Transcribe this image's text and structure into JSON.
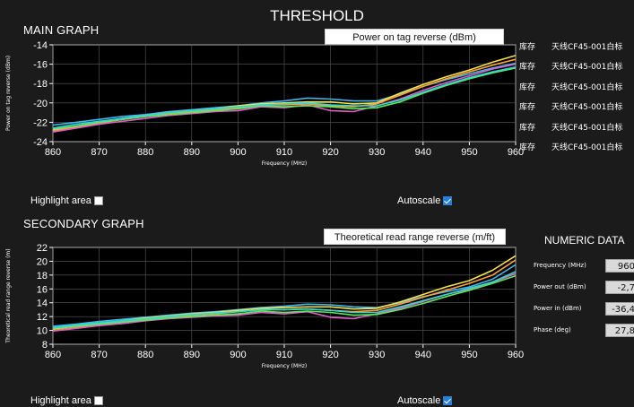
{
  "app": {
    "title": "THRESHOLD"
  },
  "main_graph": {
    "title": "MAIN GRAPH",
    "selector": "Power on tag reverse (dBm)",
    "highlight_label": "Highlight area",
    "highlight_checked": false,
    "autoscale_label": "Autoscale",
    "autoscale_checked": true
  },
  "secondary_graph": {
    "title": "SECONDARY GRAPH",
    "selector": "Theoretical read range reverse (m/ft)",
    "highlight_label": "Highlight area",
    "highlight_checked": false,
    "autoscale_label": "Autoscale",
    "autoscale_checked": true
  },
  "legend": {
    "items": [
      {
        "store": "库存",
        "name": "天线CF45-001白标"
      },
      {
        "store": "库存",
        "name": "天线CF45-001白标"
      },
      {
        "store": "库存",
        "name": "天线CF45-001白标"
      },
      {
        "store": "库存",
        "name": "天线CF45-001白标"
      },
      {
        "store": "库存",
        "name": "天线CF45-001白标"
      },
      {
        "store": "库存",
        "name": "天线CF45-001白标"
      }
    ]
  },
  "numeric": {
    "title": "NUMERIC DATA",
    "rows": [
      {
        "label": "Frequency (MHz)",
        "value": "960"
      },
      {
        "label": "Power out (dBm)",
        "value": "-2,7"
      },
      {
        "label": "Power in (dBm)",
        "value": "-36,4"
      },
      {
        "label": "Phase (deg)",
        "value": "27,8"
      }
    ]
  },
  "colors": {
    "background": "#1b1b1b",
    "series": [
      "#3fb8f0",
      "#f4e34a",
      "#ff9f3a",
      "#e060c8",
      "#5ee85e",
      "#36d6d0"
    ]
  },
  "chart_data": [
    {
      "type": "line",
      "title": "",
      "xlabel": "Frequency (MHz)",
      "ylabel": "Power on tag reverse (dBm)",
      "xlim": [
        860,
        960
      ],
      "ylim": [
        -24,
        -14
      ],
      "x_ticks": [
        860,
        870,
        880,
        890,
        900,
        910,
        920,
        930,
        940,
        950,
        960
      ],
      "y_ticks": [
        -24,
        -22,
        -20,
        -18,
        -16,
        -14
      ],
      "grid": true,
      "x": [
        860,
        865,
        870,
        875,
        880,
        885,
        890,
        895,
        900,
        905,
        910,
        915,
        920,
        925,
        930,
        935,
        940,
        945,
        950,
        955,
        960
      ],
      "series": [
        {
          "values": [
            -22.3,
            -22.0,
            -21.7,
            -21.4,
            -21.2,
            -20.9,
            -20.7,
            -20.5,
            -20.3,
            -20.0,
            -19.8,
            -19.5,
            -19.6,
            -19.8,
            -19.8,
            -19.1,
            -18.3,
            -17.6,
            -17.0,
            -16.4,
            -15.9
          ]
        },
        {
          "values": [
            -22.8,
            -22.4,
            -22.0,
            -21.6,
            -21.3,
            -21.0,
            -20.8,
            -20.6,
            -20.3,
            -20.1,
            -20.0,
            -19.9,
            -19.9,
            -20.1,
            -20.0,
            -19.0,
            -18.1,
            -17.3,
            -16.6,
            -15.8,
            -15.1
          ]
        },
        {
          "values": [
            -22.9,
            -22.5,
            -22.1,
            -21.7,
            -21.4,
            -21.1,
            -20.9,
            -20.7,
            -20.5,
            -20.2,
            -20.2,
            -20.1,
            -20.3,
            -20.4,
            -20.1,
            -19.2,
            -18.3,
            -17.5,
            -16.8,
            -16.1,
            -15.5
          ]
        },
        {
          "values": [
            -23.0,
            -22.6,
            -22.2,
            -21.9,
            -21.6,
            -21.3,
            -21.1,
            -20.9,
            -20.8,
            -20.4,
            -20.5,
            -20.2,
            -20.8,
            -20.9,
            -20.3,
            -19.6,
            -18.7,
            -17.9,
            -17.2,
            -16.5,
            -16.0
          ]
        },
        {
          "values": [
            -22.7,
            -22.4,
            -22.0,
            -21.7,
            -21.4,
            -21.2,
            -21.0,
            -20.8,
            -20.6,
            -20.3,
            -20.4,
            -20.3,
            -20.4,
            -20.6,
            -20.5,
            -19.9,
            -19.0,
            -18.2,
            -17.5,
            -16.9,
            -16.4
          ]
        },
        {
          "values": [
            -22.6,
            -22.2,
            -21.9,
            -21.6,
            -21.3,
            -21.0,
            -20.8,
            -20.6,
            -20.4,
            -20.2,
            -20.1,
            -20.0,
            -20.2,
            -20.3,
            -20.3,
            -19.7,
            -18.9,
            -18.1,
            -17.4,
            -16.8,
            -16.3
          ]
        }
      ]
    },
    {
      "type": "line",
      "title": "",
      "xlabel": "Frequency (MHz)",
      "ylabel": "Theoretical read range reverse (m)",
      "xlim": [
        860,
        960
      ],
      "ylim": [
        8,
        22
      ],
      "x_ticks": [
        860,
        870,
        880,
        890,
        900,
        910,
        920,
        930,
        940,
        950,
        960
      ],
      "y_ticks": [
        8,
        10,
        12,
        14,
        16,
        18,
        20,
        22
      ],
      "grid": true,
      "x": [
        860,
        865,
        870,
        875,
        880,
        885,
        890,
        895,
        900,
        905,
        910,
        915,
        920,
        925,
        930,
        935,
        940,
        945,
        950,
        955,
        960
      ],
      "series": [
        {
          "values": [
            10.6,
            10.9,
            11.3,
            11.6,
            11.9,
            12.2,
            12.5,
            12.7,
            13.0,
            13.3,
            13.5,
            13.8,
            13.7,
            13.4,
            13.3,
            14.0,
            14.9,
            15.6,
            16.3,
            17.4,
            19.5
          ]
        },
        {
          "values": [
            10.2,
            10.6,
            11.0,
            11.4,
            11.8,
            12.1,
            12.4,
            12.6,
            12.9,
            13.2,
            13.3,
            13.4,
            13.4,
            13.1,
            13.2,
            14.1,
            15.2,
            16.3,
            17.2,
            18.7,
            20.8
          ]
        },
        {
          "values": [
            10.0,
            10.4,
            10.8,
            11.2,
            11.6,
            11.9,
            12.2,
            12.4,
            12.7,
            13.0,
            13.0,
            13.1,
            12.9,
            12.7,
            12.9,
            13.8,
            14.8,
            15.8,
            16.8,
            18.0,
            20.2
          ]
        },
        {
          "values": [
            9.9,
            10.3,
            10.7,
            11.0,
            11.4,
            11.7,
            11.9,
            12.1,
            12.2,
            12.6,
            12.4,
            12.7,
            11.9,
            11.7,
            12.4,
            13.2,
            14.2,
            15.2,
            16.0,
            17.0,
            18.2
          ]
        },
        {
          "values": [
            10.3,
            10.6,
            10.9,
            11.2,
            11.5,
            11.8,
            12.0,
            12.2,
            12.4,
            12.8,
            12.6,
            12.8,
            12.6,
            12.2,
            12.3,
            13.0,
            13.9,
            14.9,
            15.8,
            16.8,
            17.9
          ]
        },
        {
          "values": [
            10.4,
            10.8,
            11.1,
            11.4,
            11.7,
            12.0,
            12.3,
            12.5,
            12.7,
            13.0,
            13.0,
            13.1,
            12.9,
            12.6,
            12.6,
            13.4,
            14.3,
            15.2,
            16.1,
            17.0,
            18.5
          ]
        }
      ]
    }
  ]
}
